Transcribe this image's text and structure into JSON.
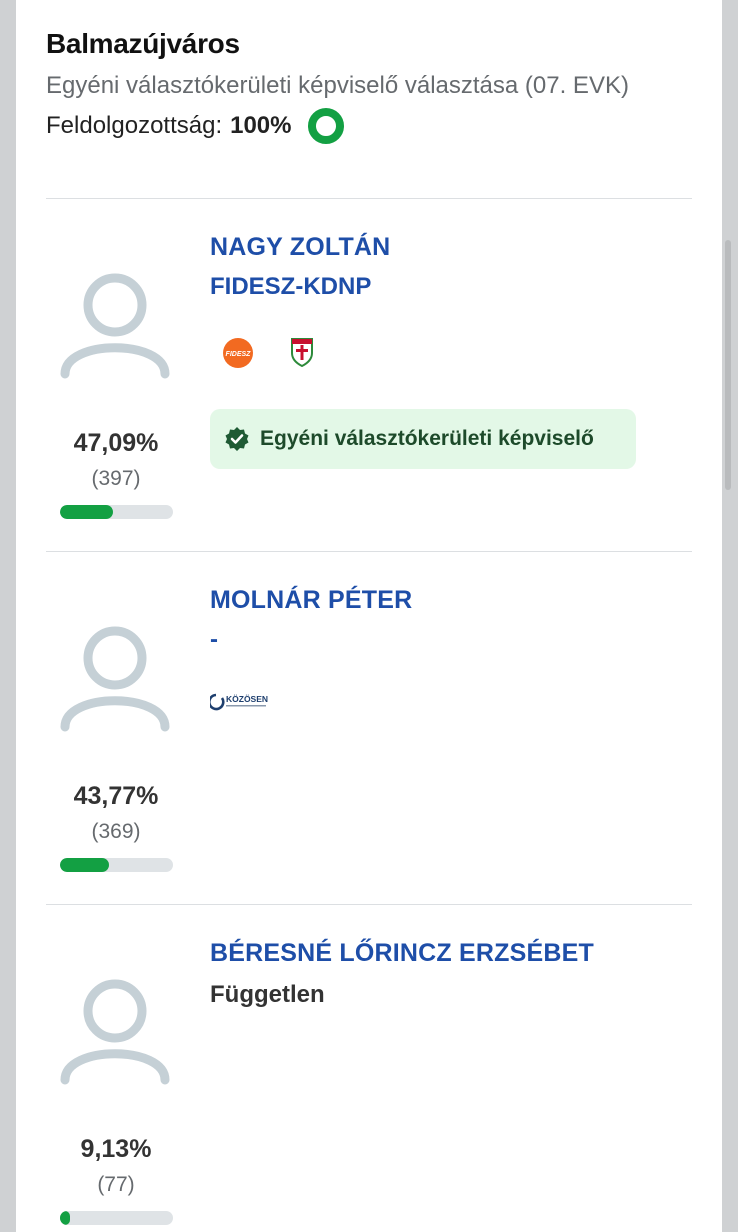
{
  "header": {
    "title": "Balmazújváros",
    "subtitle": "Egyéni választókerületi képviselő választása (07. EVK)",
    "progress_label": "Feldolgozottság:",
    "progress_value": "100%"
  },
  "colors": {
    "accent_green": "#13a043",
    "name_blue": "#1e4ea8",
    "elected_bg": "#e3f8e7"
  },
  "candidates": [
    {
      "name": "NAGY ZOLTÁN",
      "party": "FIDESZ-KDNP",
      "share": "47,09%",
      "share_value": 47.09,
      "votes": "(397)",
      "logos": [
        {
          "icon": "fidesz-logo",
          "text": "FIDESZ"
        },
        {
          "icon": "kdnp-logo"
        }
      ],
      "badge": "Egyéni választókerületi képviselő"
    },
    {
      "name": "MOLNÁR PÉTER",
      "party": "-",
      "share": "43,77%",
      "share_value": 43.77,
      "votes": "(369)",
      "logos": [
        {
          "icon": "kozosen-logo",
          "text": "KÖZÖSEN"
        }
      ]
    },
    {
      "name": "BÉRESNÉ LŐRINCZ ERZSÉBET",
      "party": "Független",
      "share": "9,13%",
      "share_value": 9.13,
      "votes": "(77)"
    }
  ]
}
